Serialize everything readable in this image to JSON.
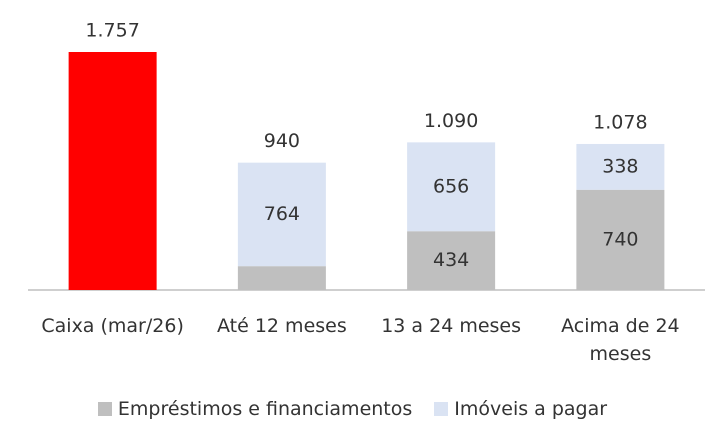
{
  "chart_data": {
    "type": "stacked_bar",
    "categories": [
      "Caixa (mar/26)",
      "Até 12 meses",
      "13 a 24 meses",
      "Acima de 24 meses"
    ],
    "series": [
      {
        "color": "#ff0000",
        "values": [
          1757,
          null,
          null,
          null
        ]
      },
      {
        "name": "Empréstimos e financiamentos",
        "color": "#bfbfbf",
        "values": [
          null,
          176,
          434,
          740
        ],
        "value_labels": [
          null,
          null,
          "434",
          "740"
        ]
      },
      {
        "name": "Imóveis a pagar",
        "color": "#dae3f3",
        "values": [
          null,
          764,
          656,
          338
        ],
        "value_labels": [
          null,
          "764",
          "656",
          "338"
        ]
      }
    ],
    "totals": {
      "values": [
        1757,
        940,
        1090,
        1078
      ],
      "labels": [
        "1.757",
        "940",
        "1.090",
        "1.078"
      ]
    },
    "legend": "bottom"
  }
}
